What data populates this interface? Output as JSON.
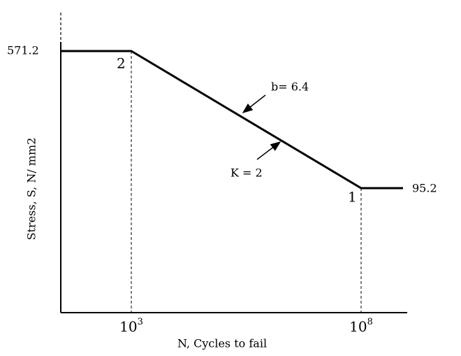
{
  "diagram": {
    "y_axis_label": "Stress, S, N/ mm2",
    "x_axis_label": "N, Cycles to fail",
    "x_ticks": [
      {
        "base": "10",
        "exponent": "3"
      },
      {
        "base": "10",
        "exponent": "8"
      }
    ],
    "upper_stress_label": "571.2",
    "lower_stress_label": "95.2",
    "points": [
      "2",
      "1"
    ],
    "annotations": [
      "b= 6.4",
      "K = 2"
    ]
  }
}
